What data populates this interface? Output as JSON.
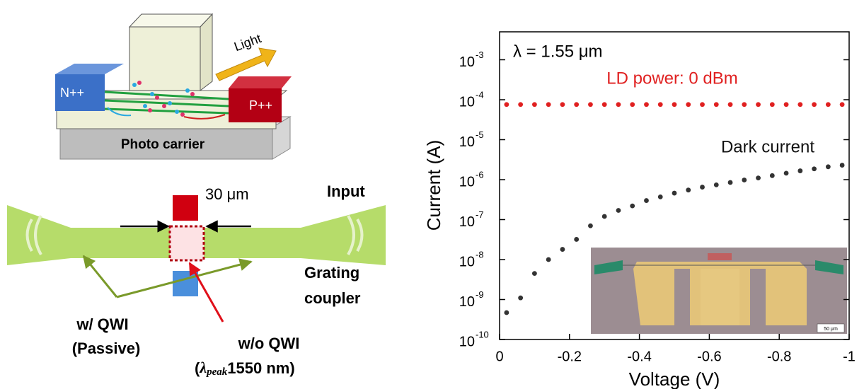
{
  "chart_data": {
    "type": "scatter",
    "annotation": "λ = 1.55 μm",
    "xlabel": "Voltage (V)",
    "ylabel": "Current (A)",
    "x": [
      -0.02,
      -0.06,
      -0.1,
      -0.14,
      -0.18,
      -0.22,
      -0.26,
      -0.3,
      -0.34,
      -0.38,
      -0.42,
      -0.46,
      -0.5,
      -0.54,
      -0.58,
      -0.62,
      -0.66,
      -0.7,
      -0.74,
      -0.78,
      -0.82,
      -0.86,
      -0.9,
      -0.94,
      -0.98
    ],
    "series": [
      {
        "name": "LD power: 0 dBm",
        "color": "#e02020",
        "values": [
          7.6e-05,
          7.6e-05,
          7.6e-05,
          7.6e-05,
          7.6e-05,
          7.6e-05,
          7.6e-05,
          7.6e-05,
          7.6e-05,
          7.6e-05,
          7.6e-05,
          7.6e-05,
          7.6e-05,
          7.6e-05,
          7.6e-05,
          7.6e-05,
          7.6e-05,
          7.6e-05,
          7.6e-05,
          7.6e-05,
          7.6e-05,
          7.6e-05,
          7.6e-05,
          7.6e-05,
          7.6e-05
        ]
      },
      {
        "name": "Dark current",
        "color": "#333333",
        "values": [
          4.7e-10,
          1.1e-09,
          4.5e-09,
          1e-08,
          1.8e-08,
          3.2e-08,
          7e-08,
          1.2e-07,
          1.7e-07,
          2.2e-07,
          3e-07,
          3.7e-07,
          4.6e-07,
          5.5e-07,
          6.5e-07,
          7.4e-07,
          8.5e-07,
          9.8e-07,
          1.1e-06,
          1.26e-06,
          1.45e-06,
          1.66e-06,
          1.86e-06,
          2.1e-06,
          2.3e-06
        ]
      }
    ],
    "xlim": [
      0,
      -1
    ],
    "xticks": [
      0,
      -0.2,
      -0.4,
      -0.6,
      -0.8,
      -1
    ],
    "ylim": [
      1e-10,
      0.005
    ],
    "ylog": true,
    "yticks": [
      {
        "value": 1e-10,
        "label": "10",
        "exponent": "-10"
      },
      {
        "value": 1e-09,
        "label": "10",
        "exponent": "-9"
      },
      {
        "value": 1e-08,
        "label": "10",
        "exponent": "-8"
      },
      {
        "value": 1e-07,
        "label": "10",
        "exponent": "-7"
      },
      {
        "value": 1e-06,
        "label": "10",
        "exponent": "-6"
      },
      {
        "value": 1e-05,
        "label": "10",
        "exponent": "-5"
      },
      {
        "value": 0.0001,
        "label": "10",
        "exponent": "-4"
      },
      {
        "value": 0.001,
        "label": "10",
        "exponent": "-3"
      }
    ],
    "inset_scale": "50 μm"
  },
  "diagram": {
    "light": "Light",
    "n_contact": "N++",
    "p_contact": "P++",
    "base": "Photo carrier",
    "width": "30 μm",
    "input": "Input",
    "coupler": [
      "Grating",
      "coupler"
    ],
    "passive": [
      "w/ QWI",
      "(Passive)"
    ],
    "active": {
      "line1": "w/o QWI",
      "open": "(",
      "symbol": "λ",
      "subscript": "peak",
      "rest": "1550 nm)"
    }
  }
}
